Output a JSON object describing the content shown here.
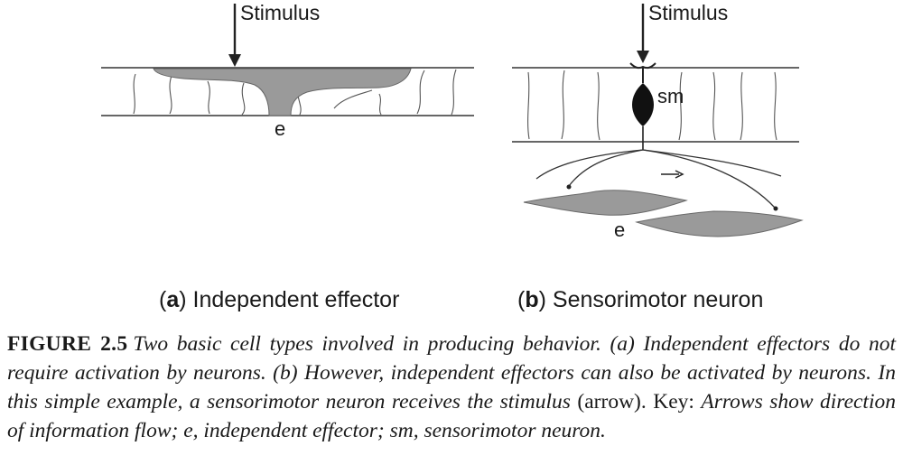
{
  "panel_a": {
    "stimulus_label": "Stimulus",
    "effector_label": "e",
    "caption_letter": "a",
    "caption_text": "Independent effector"
  },
  "panel_b": {
    "stimulus_label": "Stimulus",
    "neuron_label": "sm",
    "effector_label": "e",
    "caption_letter": "b",
    "caption_text": "Sensorimotor neuron"
  },
  "caption": {
    "figure_label": "FIGURE 2.5",
    "text_italic_1": "Two basic cell types involved in producing behavior. (a) Independent effectors do not require activation by neurons. (b) However, independent effectors can also be activated by neurons. In this simple example, a sensorimotor neuron receives the stimulus",
    "text_roman": " (arrow). Key: ",
    "text_italic_2": "Arrows show direction of information flow; e, independent effector; sm, sensorimotor neuron."
  },
  "colors": {
    "effector_fill": "#9a9a9a",
    "line": "#222222"
  }
}
